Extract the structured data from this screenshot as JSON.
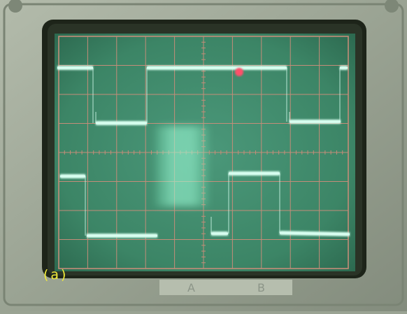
{
  "caption": "(a)",
  "bezel_labels": [
    "A",
    "B"
  ],
  "colors": {
    "case": "#9aa393",
    "case_shadow": "#6f7a6a",
    "bezel_dark": "#1d2419",
    "screen": "#3f8a6b",
    "graticule": "#c48d79",
    "trace": "#d8fff0",
    "hot_spot": "#ff4f6a",
    "caption": "#f2ec3a"
  }
}
